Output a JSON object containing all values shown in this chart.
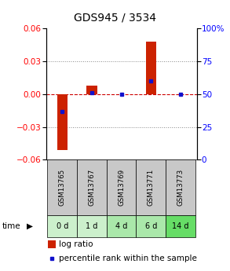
{
  "title": "GDS945 / 3534",
  "samples": [
    "GSM13765",
    "GSM13767",
    "GSM13769",
    "GSM13771",
    "GSM13773"
  ],
  "time_labels": [
    "0 d",
    "1 d",
    "4 d",
    "6 d",
    "14 d"
  ],
  "log_ratios": [
    -0.051,
    0.008,
    0.0,
    0.048,
    0.0
  ],
  "percentile_ranks": [
    37,
    51,
    50,
    60,
    50
  ],
  "ylim_left": [
    -0.06,
    0.06
  ],
  "ylim_right": [
    0,
    100
  ],
  "yticks_left": [
    -0.06,
    -0.03,
    0,
    0.03,
    0.06
  ],
  "yticks_right": [
    0,
    25,
    50,
    75,
    100
  ],
  "bar_color": "#cc2200",
  "dot_color": "#1111cc",
  "zero_line_color": "#cc0000",
  "grid_color_dotted": "#888888",
  "sample_bg_color": "#c8c8c8",
  "time_bg_colors": [
    "#ccf0cc",
    "#ccf0cc",
    "#aae8aa",
    "#aae8aa",
    "#66dd66"
  ],
  "legend_bar_color": "#cc2200",
  "legend_dot_color": "#1111cc",
  "title_fontsize": 10,
  "tick_fontsize": 7.5,
  "label_fontsize": 7.5,
  "bar_width": 0.35,
  "figsize": [
    2.93,
    3.45
  ],
  "dpi": 100
}
